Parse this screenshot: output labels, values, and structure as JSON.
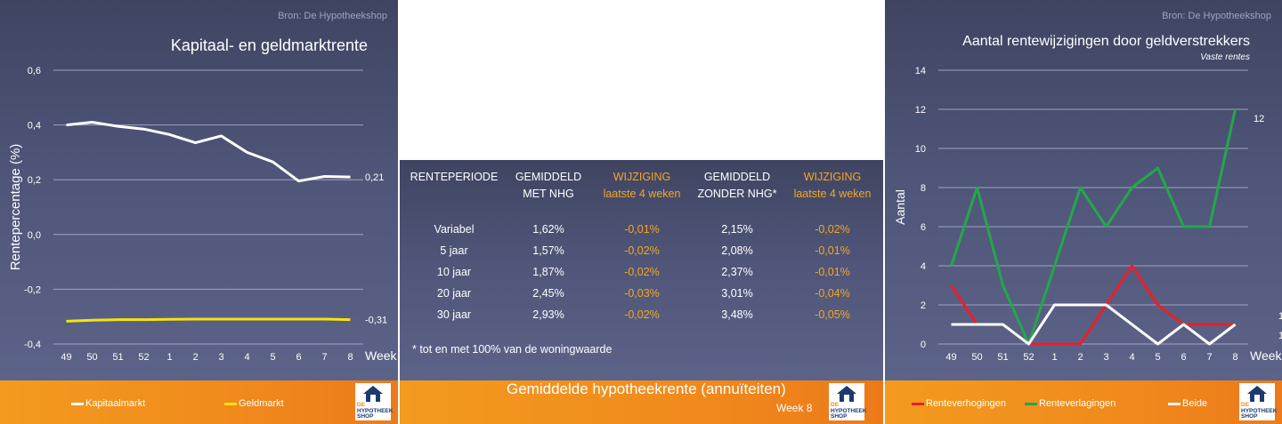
{
  "left": {
    "source": "Bron: De Hypotheekshop",
    "title": "Kapitaal- en geldmarktrente",
    "ylabel": "Rentepercentage (%)",
    "xlabel": "Week",
    "end_label_kapitaal": "0,21",
    "end_label_geld": "-0,31",
    "legend": [
      "Kapitaalmarkt",
      "Geldmarkt"
    ],
    "colors": {
      "kapitaal": "#ffffff",
      "geld": "#f5e50a"
    }
  },
  "middle": {
    "headers": [
      {
        "line1": "RENTEPERIODE",
        "line2": "",
        "orange": false
      },
      {
        "line1": "GEMIDDELD",
        "line2": "MET NHG",
        "orange": false
      },
      {
        "line1": "WIJZIGING",
        "line2": "laatste 4 weken",
        "orange": true
      },
      {
        "line1": "GEMIDDELD",
        "line2": "ZONDER NHG*",
        "orange": false
      },
      {
        "line1": "WIJZIGING",
        "line2": "laatste 4 weken",
        "orange": true
      }
    ],
    "rows": [
      [
        "Variabel",
        "1,62%",
        "-0,01%",
        "2,15%",
        "-0,02%"
      ],
      [
        "5 jaar",
        "1,57%",
        "-0,02%",
        "2,08%",
        "-0,01%"
      ],
      [
        "10 jaar",
        "1,87%",
        "-0,02%",
        "2,37%",
        "-0,01%"
      ],
      [
        "20 jaar",
        "2,45%",
        "-0,03%",
        "3,01%",
        "-0,04%"
      ],
      [
        "30 jaar",
        "2,93%",
        "-0,02%",
        "3,48%",
        "-0,05%"
      ]
    ],
    "footnote": "* tot en met 100% van de woningwaarde",
    "footer_title": "Gemiddelde hypotheekrente (annuïteiten)",
    "footer_week": "Week 8"
  },
  "right": {
    "source": "Bron: De Hypotheekshop",
    "title": "Aantal rentewijzigingen door geldverstrekkers",
    "subtitle": "Vaste rentes",
    "ylabel": "Aantal",
    "xlabel": "Week",
    "end_label_verlagingen": "12",
    "end_label_verhogingen": "1",
    "end_label_beide": "1",
    "legend": [
      "Renteverhogingen",
      "Renteverlagingen",
      "Beide"
    ],
    "colors": {
      "verhogingen": "#e8202a",
      "verlagingen": "#22a84a",
      "beide": "#ffffff"
    }
  },
  "logo": {
    "de": "DE",
    "line1": "HYPOTHEEK",
    "line2": "SHOP"
  },
  "chart_data": [
    {
      "type": "line",
      "title": "Kapitaal- en geldmarktrente",
      "ylabel": "Rentepercentage (%)",
      "xlabel": "Week",
      "categories": [
        "49",
        "50",
        "51",
        "52",
        "1",
        "2",
        "3",
        "4",
        "5",
        "6",
        "7",
        "8"
      ],
      "ylim": [
        -0.4,
        0.6
      ],
      "yticks": [
        -0.4,
        -0.2,
        0.0,
        0.2,
        0.4,
        0.6
      ],
      "grid": true,
      "legend_position": "bottom",
      "series": [
        {
          "name": "Kapitaalmarkt",
          "values": [
            0.4,
            0.41,
            0.395,
            0.385,
            0.365,
            0.335,
            0.36,
            0.3,
            0.265,
            0.195,
            0.212,
            0.21
          ]
        },
        {
          "name": "Geldmarkt",
          "values": [
            -0.317,
            -0.313,
            -0.311,
            -0.311,
            -0.31,
            -0.309,
            -0.309,
            -0.309,
            -0.309,
            -0.309,
            -0.309,
            -0.311
          ]
        }
      ]
    },
    {
      "type": "table",
      "title": "Gemiddelde hypotheekrente (annuïteiten)",
      "columns": [
        "RENTEPERIODE",
        "GEMIDDELD MET NHG",
        "WIJZIGING laatste 4 weken",
        "GEMIDDELD ZONDER NHG*",
        "WIJZIGING laatste 4 weken"
      ],
      "rows": [
        [
          "Variabel",
          "1,62%",
          "-0,01%",
          "2,15%",
          "-0,02%"
        ],
        [
          "5 jaar",
          "1,57%",
          "-0,02%",
          "2,08%",
          "-0,01%"
        ],
        [
          "10 jaar",
          "1,87%",
          "-0,02%",
          "2,37%",
          "-0,01%"
        ],
        [
          "20 jaar",
          "2,45%",
          "-0,03%",
          "3,01%",
          "-0,04%"
        ],
        [
          "30 jaar",
          "2,93%",
          "-0,02%",
          "3,48%",
          "-0,05%"
        ]
      ]
    },
    {
      "type": "line",
      "title": "Aantal rentewijzigingen door geldverstrekkers",
      "subtitle": "Vaste rentes",
      "ylabel": "Aantal",
      "xlabel": "Week",
      "categories": [
        "49",
        "50",
        "51",
        "52",
        "1",
        "2",
        "3",
        "4",
        "5",
        "6",
        "7",
        "8"
      ],
      "ylim": [
        0,
        14
      ],
      "yticks": [
        0,
        2,
        4,
        6,
        8,
        10,
        12,
        14
      ],
      "grid": true,
      "legend_position": "bottom",
      "series": [
        {
          "name": "Renteverhogingen",
          "values": [
            3,
            1,
            null,
            0,
            0,
            0,
            2,
            4,
            2,
            1,
            1,
            1
          ]
        },
        {
          "name": "Renteverlagingen",
          "values": [
            4,
            8,
            3,
            0,
            4,
            8,
            6,
            8,
            9,
            6,
            6,
            12
          ]
        },
        {
          "name": "Beide",
          "values": [
            1,
            1,
            1,
            0,
            2,
            2,
            2,
            1,
            0,
            1,
            0,
            1
          ]
        }
      ]
    }
  ]
}
